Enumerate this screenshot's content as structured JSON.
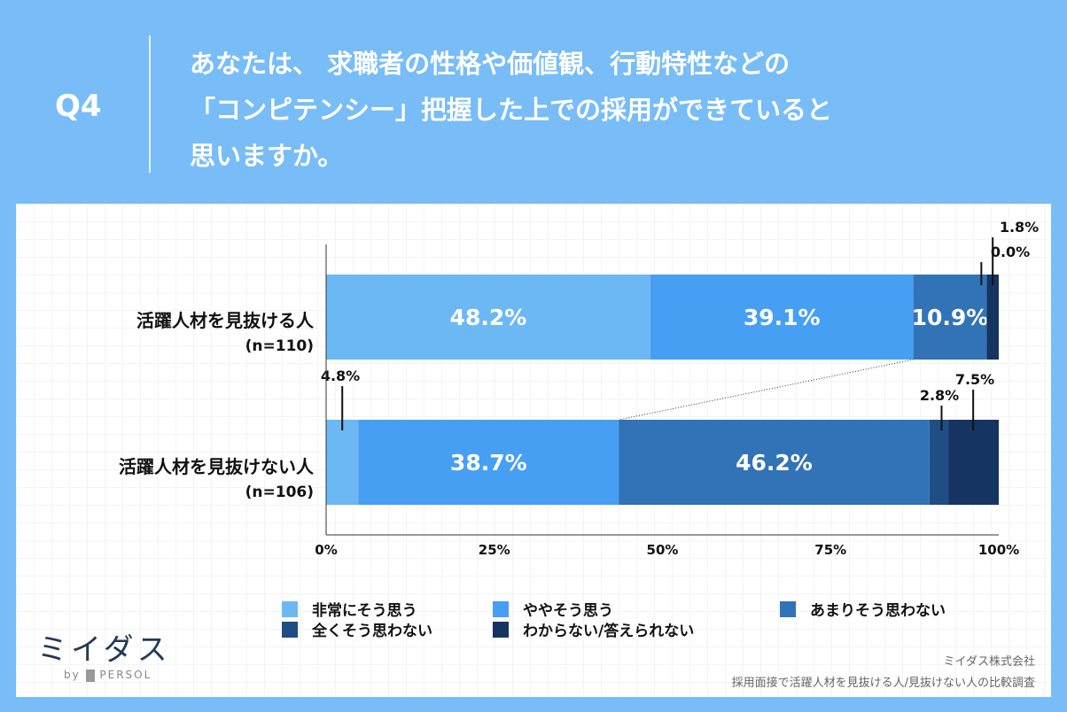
{
  "header": {
    "q": "Q4",
    "title_lines": [
      "あなたは、 求職者の性格や価値観、行動特性などの",
      "「コンピテンシー」把握した上での採用ができていると",
      "思いますか。"
    ]
  },
  "chart_data": {
    "type": "bar",
    "orientation": "horizontal",
    "stacked": true,
    "categories": [
      {
        "label": "活躍人材を見抜ける人",
        "n": "(n=110)"
      },
      {
        "label": "活躍人材を見抜けない人",
        "n": "(n=106)"
      }
    ],
    "series": [
      {
        "name": "非常にそう思う",
        "color": "#6cb8f5",
        "values": [
          48.2,
          4.8
        ]
      },
      {
        "name": "ややそう思う",
        "color": "#479ff3",
        "values": [
          39.1,
          38.7
        ]
      },
      {
        "name": "あまりそう思わない",
        "color": "#3273b7",
        "values": [
          10.9,
          46.2
        ]
      },
      {
        "name": "全くそう思わない",
        "color": "#1f4e85",
        "values": [
          0.0,
          2.8
        ]
      },
      {
        "name": "わからない/答えられない",
        "color": "#163461",
        "values": [
          1.8,
          7.5
        ]
      }
    ],
    "xlim": [
      0,
      100
    ],
    "xticks": [
      "0%",
      "25%",
      "50%",
      "75%",
      "100%"
    ]
  },
  "logo": {
    "text": "ミイダス",
    "by": "by",
    "brand": "PERSOL"
  },
  "credit": {
    "company": "ミイダス株式会社",
    "survey": "採用面接で活躍人材を見抜ける人/見抜けない人の比較調査"
  }
}
